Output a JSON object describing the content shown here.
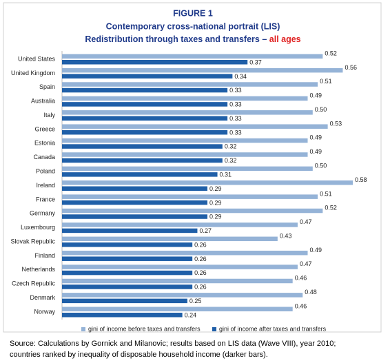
{
  "chart_data": {
    "type": "bar",
    "orientation": "horizontal",
    "title": "FIGURE 1",
    "subtitle": "Contemporary cross-national portrait (LIS)",
    "subtitle_2": "Redistribution through taxes and transfers –",
    "subtitle_highlight": "all ages",
    "categories": [
      "United States",
      "United Kingdom",
      "Spain",
      "Australia",
      "Italy",
      "Greece",
      "Estonia",
      "Canada",
      "Poland",
      "Ireland",
      "France",
      "Germany",
      "Luxembourg",
      "Slovak Republic",
      "Finland",
      "Netherlands",
      "Czech Republic",
      "Denmark",
      "Norway"
    ],
    "series": [
      {
        "name": "gini of income before taxes and transfers",
        "color": "#95b3d7",
        "values": [
          0.52,
          0.56,
          0.51,
          0.49,
          0.5,
          0.53,
          0.49,
          0.49,
          0.5,
          0.58,
          0.51,
          0.52,
          0.47,
          0.43,
          0.49,
          0.47,
          0.46,
          0.48,
          0.46
        ],
        "value_labels": [
          "0.52",
          "0.56",
          "0.51",
          "0.49",
          "0.50",
          "0.53",
          "0.49",
          "0.49",
          "0.50",
          "0.58",
          "0.51",
          "0.52",
          "0.47",
          "0.43",
          "0.49",
          "0.47",
          "0.46",
          "0.48",
          "0.46"
        ]
      },
      {
        "name": "gini of income after taxes and transfers",
        "color": "#1f5fa8",
        "values": [
          0.37,
          0.34,
          0.33,
          0.33,
          0.33,
          0.33,
          0.32,
          0.32,
          0.31,
          0.29,
          0.29,
          0.29,
          0.27,
          0.26,
          0.26,
          0.26,
          0.26,
          0.25,
          0.24
        ],
        "value_labels": [
          "0.37",
          "0.34",
          "0.33",
          "0.33",
          "0.33",
          "0.33",
          "0.32",
          "0.32",
          "0.31",
          "0.29",
          "0.29",
          "0.29",
          "0.27",
          "0.26",
          "0.26",
          "0.26",
          "0.26",
          "0.25",
          "0.24"
        ]
      }
    ],
    "legend": "bottom",
    "note": [
      "Source:  Calculations by Gornick and Milanovic; results based on LIS data (Wave VIII), year 2010;",
      "countries ranked by inequality of disposable household income (darker bars)."
    ]
  }
}
